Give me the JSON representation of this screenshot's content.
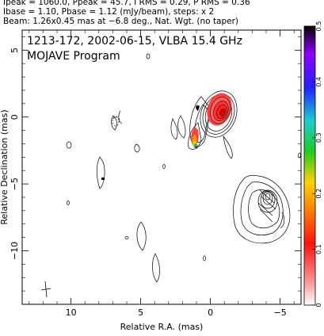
{
  "header": {
    "line1": "Ipeak = 1060.0, Ppeak = 45.7, I RMS = 0.29, P RMS = 0.36",
    "line2": "Ibase = 1.10, Pbase = 1.12 (mJy/beam), steps: x 2",
    "line3": "Beam: 1.26x0.45 mas at −6.8 deg., Nat. Wgt. (no taper)"
  },
  "chart_data": {
    "type": "heatmap",
    "title": "1213-172, 2002-06-15, VLBA 15.4 GHz",
    "subtitle": "MOJAVE Program",
    "xlabel": "Relative R.A. (mas)",
    "ylabel": "Relative Declination (mas)",
    "xlim": [
      13.5,
      -6.5
    ],
    "ylim": [
      -14.0,
      6.5
    ],
    "x_ticks": [
      10,
      5,
      0,
      -5
    ],
    "x_tick_labels": [
      "10",
      "5",
      "0",
      "−5"
    ],
    "y_ticks": [
      5,
      0,
      -5,
      -10
    ],
    "y_tick_labels": [
      "5",
      "0",
      "−5",
      "−10"
    ],
    "colorbar": {
      "range": [
        0,
        0.5
      ],
      "ticks": [
        0,
        0.1,
        0.2,
        0.3,
        0.4,
        0.5
      ],
      "tick_labels": [
        "0",
        "0.1",
        "0.2",
        "0.3",
        "0.4",
        "0.5"
      ],
      "colors": [
        "#ffffff",
        "#ff8f8f",
        "#ff1010",
        "#ff8000",
        "#ffd200",
        "#1ecc1e",
        "#18d0d0",
        "#2020ff",
        "#9000ff",
        "#000000"
      ]
    },
    "beam": {
      "major_mas": 1.26,
      "minor_mas": 0.45,
      "pa_deg": -6.8,
      "center": [
        13.0,
        -12.8
      ]
    },
    "core": {
      "ra": 0.0,
      "dec": 0.0,
      "peak_mJy_per_beam": 1060.0
    },
    "contour_base_mJy_per_beam": 1.1,
    "contour_step_factor": 2,
    "fractional_polarization": [
      {
        "ra": 0.2,
        "dec": 0.0,
        "value": 0.02
      },
      {
        "ra": 2.2,
        "dec": -2.2,
        "value": 0.18
      }
    ]
  }
}
